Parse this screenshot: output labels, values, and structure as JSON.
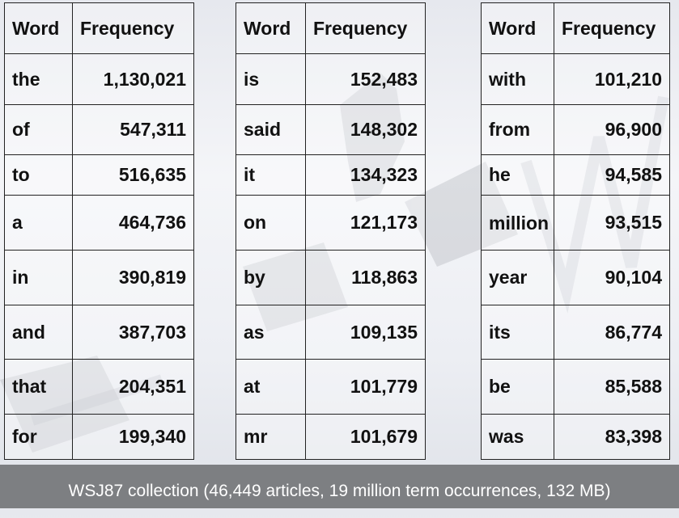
{
  "tables": [
    {
      "header": {
        "word": "Word",
        "frequency": "Frequency"
      },
      "rows": [
        {
          "word": "the",
          "frequency": "1,130,021"
        },
        {
          "word": "of",
          "frequency": "547,311"
        },
        {
          "word": "to",
          "frequency": "516,635"
        },
        {
          "word": "a",
          "frequency": "464,736"
        },
        {
          "word": "in",
          "frequency": "390,819"
        },
        {
          "word": "and",
          "frequency": "387,703"
        },
        {
          "word": "that",
          "frequency": "204,351"
        },
        {
          "word": "for",
          "frequency": "199,340"
        }
      ]
    },
    {
      "header": {
        "word": "Word",
        "frequency": "Frequency"
      },
      "rows": [
        {
          "word": "is",
          "frequency": "152,483"
        },
        {
          "word": "said",
          "frequency": "148,302"
        },
        {
          "word": "it",
          "frequency": "134,323"
        },
        {
          "word": "on",
          "frequency": "121,173"
        },
        {
          "word": "by",
          "frequency": "118,863"
        },
        {
          "word": "as",
          "frequency": "109,135"
        },
        {
          "word": "at",
          "frequency": "101,779"
        },
        {
          "word": "mr",
          "frequency": "101,679"
        }
      ]
    },
    {
      "header": {
        "word": "Word",
        "frequency": "Frequency"
      },
      "rows": [
        {
          "word": "with",
          "frequency": "101,210"
        },
        {
          "word": "from",
          "frequency": "96,900"
        },
        {
          "word": "he",
          "frequency": "94,585"
        },
        {
          "word": "million",
          "frequency": "93,515"
        },
        {
          "word": "year",
          "frequency": "90,104"
        },
        {
          "word": "its",
          "frequency": "86,774"
        },
        {
          "word": "be",
          "frequency": "85,588"
        },
        {
          "word": "was",
          "frequency": "83,398"
        }
      ]
    }
  ],
  "footer": {
    "caption": "WSJ87 collection (46,449 articles, 19 million term occurrences, 132 MB)"
  }
}
